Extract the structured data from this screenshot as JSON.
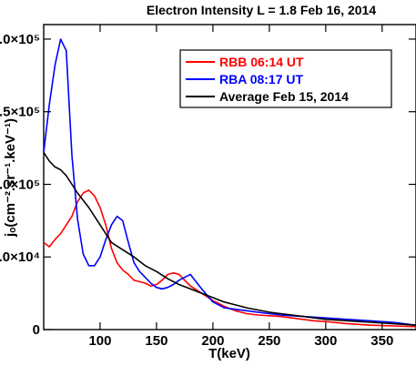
{
  "chart_data": {
    "type": "line",
    "title": "Electron Intensity L = 1.8 Feb 16, 2014",
    "xlabel": "T(keV)",
    "ylabel": "jₒ(cm⁻².sr⁻¹.keV⁻¹)",
    "xlim": [
      50,
      380
    ],
    "ylim": [
      0,
      210000
    ],
    "x_ticks": [
      "100",
      "150",
      "200",
      "250",
      "300",
      "350"
    ],
    "x_tick_values": [
      100,
      150,
      200,
      250,
      300,
      350
    ],
    "y_ticks": [
      "0",
      "5.0×10⁴",
      "1.0×10⁵",
      "1.5×10⁵",
      "2.0×10⁵"
    ],
    "y_tick_values": [
      0,
      50000,
      100000,
      150000,
      200000
    ],
    "legend_position": "top-right",
    "series": [
      {
        "name": "RBB 06:14 UT",
        "color": "#ff0000",
        "x": [
          50,
          55,
          60,
          65,
          70,
          75,
          80,
          85,
          90,
          95,
          100,
          105,
          110,
          115,
          120,
          125,
          130,
          135,
          140,
          145,
          150,
          155,
          160,
          165,
          170,
          175,
          180,
          190,
          200,
          210,
          220,
          230,
          240,
          250,
          260,
          270,
          280,
          290,
          300,
          320,
          340,
          360,
          380
        ],
        "y": [
          60000,
          57000,
          62000,
          66000,
          72000,
          78000,
          88000,
          94000,
          96000,
          92000,
          84000,
          72000,
          56000,
          46000,
          41000,
          38000,
          34000,
          33000,
          32000,
          30000,
          31000,
          34000,
          38000,
          39000,
          38000,
          34000,
          30000,
          25000,
          20000,
          16000,
          13000,
          11000,
          10000,
          9500,
          9000,
          8000,
          7000,
          6000,
          5500,
          4000,
          3000,
          2500,
          2000
        ]
      },
      {
        "name": "RBA 08:17 UT",
        "color": "#0000ff",
        "x": [
          50,
          55,
          60,
          65,
          70,
          75,
          80,
          85,
          90,
          95,
          100,
          105,
          110,
          115,
          120,
          125,
          130,
          135,
          140,
          145,
          150,
          155,
          160,
          165,
          170,
          175,
          180,
          190,
          200,
          210,
          220,
          230,
          240,
          250,
          260,
          270,
          280,
          290,
          300,
          320,
          340,
          360,
          380
        ],
        "y": [
          122000,
          155000,
          182000,
          200000,
          192000,
          120000,
          76000,
          52000,
          44000,
          44000,
          50000,
          62000,
          72000,
          78000,
          75000,
          60000,
          46000,
          40000,
          36000,
          32000,
          29000,
          28000,
          29000,
          31000,
          34000,
          36000,
          38000,
          28000,
          19000,
          15000,
          14000,
          13000,
          12000,
          11000,
          10000,
          9500,
          9000,
          8500,
          8000,
          7000,
          6000,
          5000,
          3000
        ]
      },
      {
        "name": "Average Feb 15, 2014",
        "color": "#000000",
        "x": [
          50,
          55,
          60,
          65,
          70,
          75,
          80,
          90,
          100,
          110,
          120,
          130,
          140,
          150,
          160,
          170,
          180,
          190,
          200,
          210,
          220,
          230,
          240,
          250,
          260,
          270,
          280,
          290,
          300,
          320,
          340,
          360,
          380
        ],
        "y": [
          122000,
          116000,
          112000,
          110000,
          106000,
          100000,
          94000,
          84000,
          72000,
          60000,
          55000,
          50000,
          44000,
          40000,
          35000,
          31000,
          28000,
          25000,
          22000,
          19000,
          17000,
          15000,
          13500,
          12000,
          11000,
          10000,
          9000,
          8000,
          7000,
          6000,
          5000,
          4000,
          3000
        ]
      }
    ]
  }
}
